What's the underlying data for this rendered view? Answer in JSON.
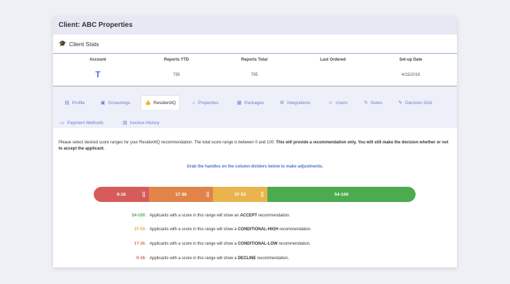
{
  "client": {
    "title": "Client: ABC Properties"
  },
  "stats": {
    "title": "Client Stats",
    "columns": [
      {
        "header": "Account",
        "value": ""
      },
      {
        "header": "Reports YTD",
        "value": "795"
      },
      {
        "header": "Reports Total",
        "value": "795"
      },
      {
        "header": "Last Ordered",
        "value": ""
      },
      {
        "header": "Set-up Date",
        "value": "4/15/2019"
      }
    ],
    "account_logo_text": "T"
  },
  "tabs": [
    {
      "label": "Profile",
      "icon": "id-card-icon",
      "glyph": "▤",
      "active": false
    },
    {
      "label": "Screenings",
      "icon": "document-icon",
      "glyph": "▣",
      "active": false
    },
    {
      "label": "ResidentIQ",
      "icon": "thumbs-up-icon",
      "glyph": "👍",
      "active": true
    },
    {
      "label": "Properties",
      "icon": "home-icon",
      "glyph": "⌂",
      "active": false
    },
    {
      "label": "Packages",
      "icon": "package-icon",
      "glyph": "▦",
      "active": false
    },
    {
      "label": "Integrations",
      "icon": "integrations-icon",
      "glyph": "⚙",
      "active": false
    },
    {
      "label": "Users",
      "icon": "users-icon",
      "glyph": "☺",
      "active": false
    },
    {
      "label": "Notes",
      "icon": "pencil-icon",
      "glyph": "✎",
      "active": false
    },
    {
      "label": "Decision Grid",
      "icon": "pencil-icon",
      "glyph": "✎",
      "active": false
    },
    {
      "label": "Payment Methods",
      "icon": "credit-card-icon",
      "glyph": "▭",
      "active": false
    },
    {
      "label": "Invoice History",
      "icon": "invoice-icon",
      "glyph": "▤",
      "active": false
    }
  ],
  "residentiq": {
    "intro_plain": "Please select desired score ranges for your ResidentIQ recommendation. The total score range is between 0 and 100. ",
    "intro_bold": "This will provide a recommendation only. You will still make the decision whether or not to accept the applicant.",
    "hint": "Grab the handles on the column dividers below to make adjustments.",
    "ranges": [
      {
        "label": "0-16",
        "min": 0,
        "max": 16,
        "color": "#d65b5b"
      },
      {
        "label": "17-36",
        "min": 17,
        "max": 36,
        "color": "#e0844a"
      },
      {
        "label": "37-53",
        "min": 37,
        "max": 53,
        "color": "#e9b44c"
      },
      {
        "label": "54-100",
        "min": 54,
        "max": 100,
        "color": "#4caa4f"
      }
    ],
    "legend": [
      {
        "range": "54-100:",
        "color": "#4caa4f",
        "pre": "Applicants with a score in this range will show an ",
        "bold": "ACCEPT",
        "post": " recommendation."
      },
      {
        "range": "37-53:",
        "color": "#e9a83a",
        "pre": "Applicants with a score in this range will show a ",
        "bold": "CONDITIONAL-HIGH",
        "post": " recommendation."
      },
      {
        "range": "17-36:",
        "color": "#e0784a",
        "pre": "Applicants with a score in this range will show a ",
        "bold": "CONDITIONAL-LOW",
        "post": " recommendation."
      },
      {
        "range": "0-16:",
        "color": "#d65b5b",
        "pre": "Applicants with a score in this range will show a ",
        "bold": "DECLINE",
        "post": " recommendation."
      }
    ]
  }
}
